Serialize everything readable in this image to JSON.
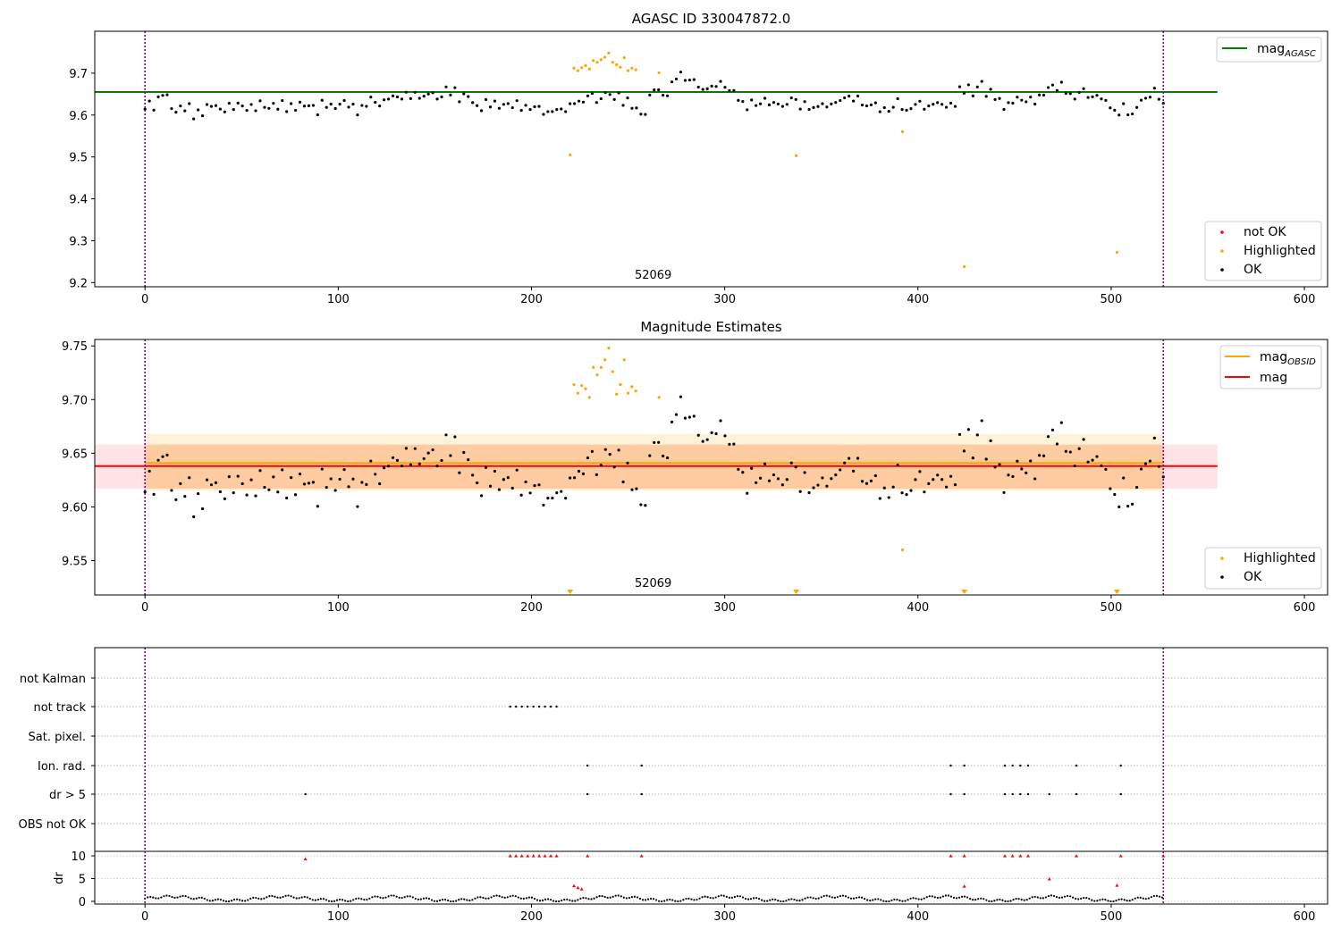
{
  "chart_data": [
    {
      "type": "scatter",
      "title": "AGASC ID 330047872.0",
      "xlim": [
        -26,
        612
      ],
      "ylim": [
        9.19,
        9.8
      ],
      "xticks": [
        0,
        100,
        200,
        300,
        400,
        500,
        600
      ],
      "yticks": [
        9.2,
        9.3,
        9.4,
        9.5,
        9.6,
        9.7
      ],
      "ytick_labels": [
        "9.2",
        "9.3",
        "9.4",
        "9.5",
        "9.6",
        "9.7"
      ],
      "obsid_label": "52069",
      "obsid_label_x": 263,
      "vlines": [
        0,
        527
      ],
      "hlines": [
        {
          "name_main": "mag",
          "name_sub": "AGASC",
          "y": 9.655,
          "x0": -26,
          "x1": 555,
          "color": "#008000"
        }
      ],
      "legend_top": [
        {
          "label_main": "mag",
          "label_sub": "AGASC",
          "kind": "line",
          "color": "#008000"
        }
      ],
      "legend_bottom": [
        {
          "label": "not OK",
          "kind": "dot",
          "color": "#ff0000"
        },
        {
          "label": "Highlighted",
          "kind": "dot",
          "color": "#ffa500"
        },
        {
          "label": "OK",
          "kind": "dot",
          "color": "#000000"
        }
      ],
      "ok_points": {
        "color": "#000000",
        "x_start": 0,
        "x_end": 527,
        "y": [
          9.61,
          9.63,
          9.62,
          9.64,
          9.65,
          9.64,
          9.62,
          9.61,
          9.62,
          9.61,
          9.62,
          9.6,
          9.61,
          9.6,
          9.62,
          9.62,
          9.63,
          9.61,
          9.61,
          9.62,
          9.62,
          9.63,
          9.62,
          9.61,
          9.62,
          9.62,
          9.63,
          9.62,
          9.61,
          9.63,
          9.62,
          9.63,
          9.61,
          9.62,
          9.62,
          9.63,
          9.62,
          9.62,
          9.62,
          9.61,
          9.63,
          9.62,
          9.62,
          9.62,
          9.63,
          9.63,
          9.62,
          9.62,
          9.61,
          9.62,
          9.62,
          9.64,
          9.63,
          9.63,
          9.63,
          9.64,
          9.64,
          9.65,
          9.64,
          9.65,
          9.64,
          9.65,
          9.65,
          9.64,
          9.65,
          9.65,
          9.64,
          9.65,
          9.66,
          9.65,
          9.66,
          9.64,
          9.65,
          9.64,
          9.63,
          9.62,
          9.62,
          9.63,
          9.62,
          9.63,
          9.62,
          9.63,
          9.62,
          9.62,
          9.63,
          9.62,
          9.62,
          9.61,
          9.62,
          9.62,
          9.61,
          9.6,
          9.61,
          9.61,
          9.62,
          9.61,
          9.62,
          9.63,
          9.63,
          9.64,
          9.64,
          9.65,
          9.63,
          9.64,
          9.66,
          9.64,
          9.64,
          9.65,
          9.63,
          9.64,
          9.61,
          9.62,
          9.6,
          9.61,
          9.64,
          9.66,
          9.66,
          9.65,
          9.65,
          9.67,
          9.69,
          9.7,
          9.69,
          9.68,
          9.68,
          9.67,
          9.66,
          9.67,
          9.66,
          9.67,
          9.68,
          9.67,
          9.66,
          9.65,
          9.64,
          9.63,
          9.62,
          9.63,
          9.62,
          9.63,
          9.64,
          9.63,
          9.62,
          9.63,
          9.62,
          9.63,
          9.64,
          9.63,
          9.62,
          9.63,
          9.62,
          9.61,
          9.62,
          9.63,
          9.62,
          9.63,
          9.62,
          9.64,
          9.64,
          9.65,
          9.63,
          9.64,
          9.63,
          9.62,
          9.63,
          9.62,
          9.61,
          9.62,
          9.61,
          9.62,
          9.63,
          9.62,
          9.61,
          9.62,
          9.62,
          9.63,
          9.62,
          9.62,
          9.63,
          9.62,
          9.63,
          9.62,
          9.63,
          9.62,
          9.66,
          9.66,
          9.67,
          9.65,
          9.66,
          9.68,
          9.65,
          9.66,
          9.64,
          9.63,
          9.62,
          9.63,
          9.63,
          9.64,
          9.63,
          9.64,
          9.64,
          9.63,
          9.64,
          9.65,
          9.67,
          9.67,
          9.66,
          9.67,
          9.66,
          9.65,
          9.64,
          9.65,
          9.66,
          9.65,
          9.64,
          9.65,
          9.63,
          9.64,
          9.62,
          9.61,
          9.6,
          9.62,
          9.61,
          9.6,
          9.62,
          9.63,
          9.64,
          9.65,
          9.66,
          9.64,
          9.62
        ]
      },
      "highlighted_points": [
        {
          "x": 220,
          "y": 9.505
        },
        {
          "x": 222,
          "y": 9.712
        },
        {
          "x": 224,
          "y": 9.706
        },
        {
          "x": 226,
          "y": 9.713
        },
        {
          "x": 228,
          "y": 9.718
        },
        {
          "x": 230,
          "y": 9.71
        },
        {
          "x": 232,
          "y": 9.73
        },
        {
          "x": 234,
          "y": 9.726
        },
        {
          "x": 236,
          "y": 9.732
        },
        {
          "x": 238,
          "y": 9.738
        },
        {
          "x": 240,
          "y": 9.748
        },
        {
          "x": 242,
          "y": 9.726
        },
        {
          "x": 244,
          "y": 9.72
        },
        {
          "x": 246,
          "y": 9.714
        },
        {
          "x": 248,
          "y": 9.737
        },
        {
          "x": 250,
          "y": 9.706
        },
        {
          "x": 252,
          "y": 9.712
        },
        {
          "x": 254,
          "y": 9.708
        },
        {
          "x": 266,
          "y": 9.701
        },
        {
          "x": 337,
          "y": 9.503
        },
        {
          "x": 392,
          "y": 9.56
        },
        {
          "x": 424,
          "y": 9.238
        },
        {
          "x": 503,
          "y": 9.272
        }
      ]
    },
    {
      "type": "scatter",
      "title": "Magnitude Estimates",
      "xlim": [
        -26,
        612
      ],
      "ylim": [
        9.518,
        9.756
      ],
      "xticks": [
        0,
        100,
        200,
        300,
        400,
        500,
        600
      ],
      "yticks": [
        9.55,
        9.6,
        9.65,
        9.7,
        9.75
      ],
      "ytick_labels": [
        "9.55",
        "9.60",
        "9.65",
        "9.70",
        "9.75"
      ],
      "obsid_label": "52069",
      "obsid_label_x": 263,
      "vlines": [
        0,
        527
      ],
      "bands": [
        {
          "y0": 9.617,
          "y1": 9.658,
          "x0": -26,
          "x1": 555,
          "color": "#ff9aa5",
          "opacity": 0.28
        },
        {
          "y0": 9.615,
          "y1": 9.668,
          "x0": 0,
          "x1": 527,
          "color": "#ffa500",
          "opacity": 0.14
        },
        {
          "y0": 9.617,
          "y1": 9.658,
          "x0": 0,
          "x1": 527,
          "color": "#ff8c00",
          "opacity": 0.18
        }
      ],
      "hlines": [
        {
          "name_main": "mag",
          "name_sub": "OBSID",
          "y": 9.641,
          "x0": 0,
          "x1": 527,
          "color": "#ffa500"
        },
        {
          "name_main": "mag",
          "name_sub": "",
          "y": 9.638,
          "x0": -26,
          "x1": 555,
          "color": "#ff0000"
        }
      ],
      "legend_top": [
        {
          "label_main": "mag",
          "label_sub": "OBSID",
          "kind": "line",
          "color": "#ffa500"
        },
        {
          "label_main": "mag",
          "label_sub": "",
          "kind": "line",
          "color": "#ff0000"
        }
      ],
      "legend_bottom": [
        {
          "label": "Highlighted",
          "kind": "dot",
          "color": "#ffa500"
        },
        {
          "label": "OK",
          "kind": "dot",
          "color": "#000000"
        }
      ],
      "ok_points_same_as_panel": 0,
      "highlighted_points": [
        {
          "x": 222,
          "y": 9.714
        },
        {
          "x": 224,
          "y": 9.706
        },
        {
          "x": 226,
          "y": 9.713
        },
        {
          "x": 228,
          "y": 9.71
        },
        {
          "x": 230,
          "y": 9.702
        },
        {
          "x": 232,
          "y": 9.73
        },
        {
          "x": 234,
          "y": 9.723
        },
        {
          "x": 236,
          "y": 9.73
        },
        {
          "x": 238,
          "y": 9.737
        },
        {
          "x": 240,
          "y": 9.748
        },
        {
          "x": 242,
          "y": 9.726
        },
        {
          "x": 244,
          "y": 9.705
        },
        {
          "x": 246,
          "y": 9.714
        },
        {
          "x": 248,
          "y": 9.737
        },
        {
          "x": 250,
          "y": 9.706
        },
        {
          "x": 252,
          "y": 9.712
        },
        {
          "x": 254,
          "y": 9.708
        },
        {
          "x": 266,
          "y": 9.702
        },
        {
          "x": 392,
          "y": 9.56
        }
      ],
      "below_range_markers": [
        220,
        337,
        424,
        503
      ]
    },
    {
      "type": "scatter",
      "title": "",
      "xlim": [
        -26,
        612
      ],
      "xticks": [
        0,
        100,
        200,
        300,
        400,
        500,
        600
      ],
      "vlines": [
        0,
        527
      ],
      "flag_rows": [
        "not Kalman",
        "not track",
        "Sat. pixel.",
        "Ion. rad.",
        "dr > 5",
        "OBS not OK"
      ],
      "flags": {
        "not Kalman": [],
        "not track": [
          189,
          192,
          195,
          198,
          201,
          204,
          207,
          210,
          213
        ],
        "Sat. pixel.": [],
        "Ion. rad.": [
          229,
          257,
          417,
          424,
          445,
          449,
          453,
          457,
          482,
          505
        ],
        "dr > 5": [
          83,
          229,
          257,
          417,
          424,
          445,
          449,
          453,
          457,
          468,
          482,
          505
        ],
        "OBS not OK": []
      },
      "dr_panel": {
        "ylabel": "dr",
        "ylim": [
          -0.6,
          11
        ],
        "yticks": [
          0,
          5,
          10
        ],
        "ytick_labels": [
          "0",
          "5",
          "10"
        ],
        "color_ok": "#000000",
        "color_high": "#ff0000",
        "high_points": [
          {
            "x": 83,
            "y": 9.3
          },
          {
            "x": 189,
            "y": 10
          },
          {
            "x": 192,
            "y": 10
          },
          {
            "x": 195,
            "y": 10
          },
          {
            "x": 198,
            "y": 10
          },
          {
            "x": 201,
            "y": 10
          },
          {
            "x": 204,
            "y": 10
          },
          {
            "x": 207,
            "y": 10
          },
          {
            "x": 210,
            "y": 10
          },
          {
            "x": 213,
            "y": 10
          },
          {
            "x": 229,
            "y": 10
          },
          {
            "x": 257,
            "y": 10
          },
          {
            "x": 417,
            "y": 10
          },
          {
            "x": 424,
            "y": 10
          },
          {
            "x": 445,
            "y": 10
          },
          {
            "x": 449,
            "y": 10
          },
          {
            "x": 453,
            "y": 10
          },
          {
            "x": 457,
            "y": 10
          },
          {
            "x": 482,
            "y": 10
          },
          {
            "x": 505,
            "y": 10
          },
          {
            "x": 527,
            "y": 10
          },
          {
            "x": 222,
            "y": 3.4
          },
          {
            "x": 224,
            "y": 3.0
          },
          {
            "x": 226,
            "y": 2.7
          },
          {
            "x": 424,
            "y": 3.3
          },
          {
            "x": 468,
            "y": 4.9
          },
          {
            "x": 503,
            "y": 3.5
          }
        ]
      }
    }
  ]
}
